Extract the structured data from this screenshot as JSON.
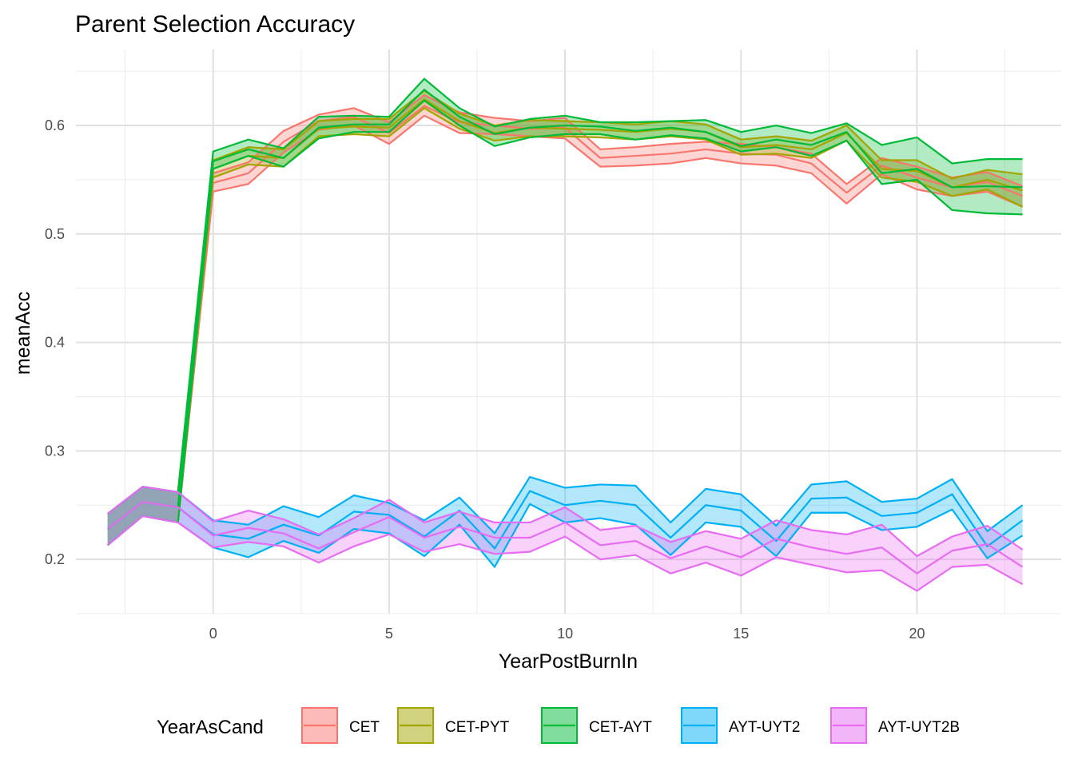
{
  "chart_data": {
    "type": "line",
    "title": "Parent Selection Accuracy",
    "xlabel": "YearPostBurnIn",
    "ylabel": "meanAcc",
    "xlim": [
      -3.9,
      24.1
    ],
    "ylim": [
      0.15,
      0.67
    ],
    "x_ticks": [
      0,
      5,
      10,
      15,
      20
    ],
    "y_ticks": [
      0.2,
      0.3,
      0.4,
      0.5,
      0.6
    ],
    "x_tick_labels": [
      "0",
      "5",
      "10",
      "15",
      "20"
    ],
    "y_tick_labels": [
      "0.2",
      "0.3",
      "0.4",
      "0.5",
      "0.6"
    ],
    "grid": true,
    "legend": {
      "title": "YearAsCand",
      "position": "bottom"
    },
    "x": [
      -3,
      -2,
      -1,
      0,
      1,
      2,
      3,
      4,
      5,
      6,
      7,
      8,
      9,
      10,
      11,
      12,
      13,
      14,
      15,
      16,
      17,
      18,
      19,
      20,
      21,
      22,
      23
    ],
    "series": [
      {
        "name": "CET",
        "color": "#F8766D",
        "fill": "#FCBAB6",
        "mean": [
          0.228,
          0.253,
          0.248,
          0.547,
          0.556,
          0.585,
          0.604,
          0.608,
          0.593,
          0.618,
          0.603,
          0.6,
          0.597,
          0.598,
          0.57,
          0.572,
          0.574,
          0.578,
          0.574,
          0.573,
          0.565,
          0.538,
          0.563,
          0.552,
          0.543,
          0.548,
          0.535
        ],
        "lower": [
          0.213,
          0.24,
          0.234,
          0.539,
          0.546,
          0.575,
          0.596,
          0.6,
          0.583,
          0.609,
          0.593,
          0.592,
          0.59,
          0.588,
          0.562,
          0.563,
          0.565,
          0.57,
          0.565,
          0.563,
          0.556,
          0.528,
          0.555,
          0.541,
          0.535,
          0.539,
          0.525
        ],
        "upper": [
          0.242,
          0.267,
          0.262,
          0.556,
          0.566,
          0.595,
          0.61,
          0.616,
          0.603,
          0.628,
          0.612,
          0.607,
          0.604,
          0.607,
          0.578,
          0.58,
          0.583,
          0.585,
          0.583,
          0.58,
          0.574,
          0.546,
          0.57,
          0.562,
          0.552,
          0.557,
          0.544
        ]
      },
      {
        "name": "CET-PYT",
        "color": "#A3A500",
        "fill": "#D1D27F",
        "mean": [
          0.228,
          0.253,
          0.248,
          0.56,
          0.572,
          0.57,
          0.597,
          0.599,
          0.598,
          0.624,
          0.604,
          0.593,
          0.598,
          0.597,
          0.596,
          0.594,
          0.597,
          0.594,
          0.58,
          0.582,
          0.578,
          0.593,
          0.56,
          0.558,
          0.543,
          0.55,
          0.54
        ],
        "lower": [
          0.213,
          0.24,
          0.234,
          0.552,
          0.564,
          0.562,
          0.59,
          0.592,
          0.59,
          0.616,
          0.597,
          0.586,
          0.59,
          0.59,
          0.589,
          0.587,
          0.59,
          0.587,
          0.573,
          0.574,
          0.57,
          0.586,
          0.552,
          0.548,
          0.535,
          0.541,
          0.525
        ],
        "upper": [
          0.242,
          0.267,
          0.262,
          0.568,
          0.58,
          0.578,
          0.604,
          0.606,
          0.606,
          0.632,
          0.611,
          0.6,
          0.605,
          0.604,
          0.603,
          0.601,
          0.604,
          0.601,
          0.587,
          0.59,
          0.586,
          0.6,
          0.568,
          0.568,
          0.551,
          0.559,
          0.555
        ]
      },
      {
        "name": "CET-AYT",
        "color": "#00BA38",
        "fill": "#7FDC9B",
        "mean": [
          0.228,
          0.253,
          0.248,
          0.567,
          0.578,
          0.57,
          0.598,
          0.601,
          0.601,
          0.633,
          0.608,
          0.592,
          0.598,
          0.6,
          0.599,
          0.595,
          0.598,
          0.594,
          0.581,
          0.587,
          0.582,
          0.594,
          0.556,
          0.56,
          0.543,
          0.544,
          0.543
        ],
        "lower": [
          0.213,
          0.24,
          0.234,
          0.56,
          0.572,
          0.562,
          0.588,
          0.594,
          0.594,
          0.623,
          0.6,
          0.581,
          0.589,
          0.592,
          0.592,
          0.587,
          0.591,
          0.588,
          0.576,
          0.58,
          0.572,
          0.586,
          0.546,
          0.55,
          0.522,
          0.519,
          0.518
        ],
        "upper": [
          0.242,
          0.267,
          0.262,
          0.576,
          0.587,
          0.579,
          0.608,
          0.609,
          0.608,
          0.643,
          0.616,
          0.599,
          0.606,
          0.609,
          0.603,
          0.603,
          0.604,
          0.605,
          0.594,
          0.6,
          0.593,
          0.602,
          0.582,
          0.589,
          0.565,
          0.569,
          0.569
        ]
      },
      {
        "name": "AYT-UYT2",
        "color": "#00B0F6",
        "fill": "#7FD7FA",
        "mean": [
          0.228,
          0.253,
          0.248,
          0.223,
          0.219,
          0.232,
          0.222,
          0.244,
          0.241,
          0.221,
          0.245,
          0.21,
          0.263,
          0.25,
          0.254,
          0.25,
          0.22,
          0.25,
          0.245,
          0.217,
          0.256,
          0.257,
          0.24,
          0.243,
          0.26,
          0.212,
          0.236
        ],
        "lower": [
          0.213,
          0.24,
          0.234,
          0.211,
          0.202,
          0.217,
          0.206,
          0.228,
          0.224,
          0.203,
          0.232,
          0.193,
          0.251,
          0.234,
          0.238,
          0.232,
          0.204,
          0.234,
          0.23,
          0.203,
          0.243,
          0.243,
          0.227,
          0.23,
          0.246,
          0.201,
          0.222
        ],
        "upper": [
          0.242,
          0.267,
          0.262,
          0.236,
          0.232,
          0.249,
          0.239,
          0.259,
          0.252,
          0.236,
          0.257,
          0.224,
          0.276,
          0.266,
          0.269,
          0.268,
          0.234,
          0.265,
          0.26,
          0.231,
          0.269,
          0.272,
          0.253,
          0.256,
          0.274,
          0.226,
          0.25
        ]
      },
      {
        "name": "AYT-UYT2B",
        "color": "#E76BF3",
        "fill": "#F3B5F9",
        "mean": [
          0.228,
          0.253,
          0.248,
          0.222,
          0.229,
          0.224,
          0.21,
          0.225,
          0.239,
          0.22,
          0.23,
          0.22,
          0.22,
          0.234,
          0.213,
          0.217,
          0.201,
          0.212,
          0.202,
          0.219,
          0.211,
          0.205,
          0.211,
          0.187,
          0.208,
          0.214,
          0.193
        ],
        "lower": [
          0.213,
          0.24,
          0.234,
          0.211,
          0.216,
          0.212,
          0.197,
          0.212,
          0.223,
          0.207,
          0.214,
          0.205,
          0.207,
          0.221,
          0.2,
          0.204,
          0.187,
          0.197,
          0.185,
          0.202,
          0.195,
          0.188,
          0.19,
          0.171,
          0.193,
          0.195,
          0.177
        ],
        "upper": [
          0.242,
          0.267,
          0.262,
          0.235,
          0.245,
          0.237,
          0.223,
          0.238,
          0.255,
          0.234,
          0.244,
          0.234,
          0.234,
          0.248,
          0.227,
          0.231,
          0.216,
          0.226,
          0.219,
          0.236,
          0.227,
          0.223,
          0.232,
          0.203,
          0.221,
          0.231,
          0.209
        ]
      }
    ]
  }
}
